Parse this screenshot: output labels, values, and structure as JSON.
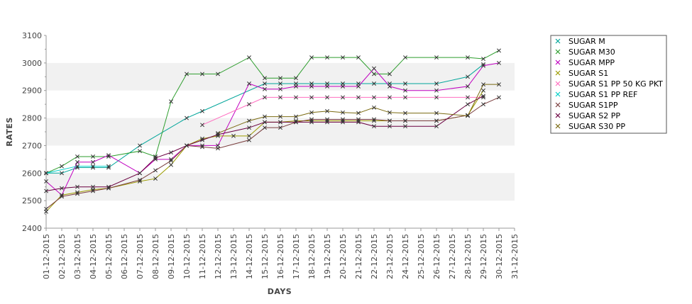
{
  "chart_data": {
    "type": "line",
    "xlabel": "DAYS",
    "ylabel": "RATES",
    "ylim": [
      2400,
      3100
    ],
    "yticks": [
      2400,
      2500,
      2600,
      2700,
      2800,
      2900,
      3000,
      3100
    ],
    "grid": "alternating horizontal bands",
    "legend": "right",
    "x": [
      "01-12-2015",
      "02-12-2015",
      "03-12-2015",
      "04-12-2015",
      "05-12-2015",
      "06-12-2015",
      "07-12-2015",
      "08-12-2015",
      "09-12-2015",
      "10-12-2015",
      "11-12-2015",
      "12-12-2015",
      "13-12-2015",
      "14-12-2015",
      "15-12-2015",
      "16-12-2015",
      "17-12-2015",
      "18-12-2015",
      "19-12-2015",
      "20-12-2015",
      "21-12-2015",
      "22-12-2015",
      "23-12-2015",
      "24-12-2015",
      "25-12-2015",
      "26-12-2015",
      "27-12-2015",
      "28-12-2015",
      "29-12-2015",
      "30-12-2015",
      "31-12-2015"
    ],
    "series": [
      {
        "name": "SUGAR M",
        "color": "#00a59a",
        "values": [
          2600,
          2600,
          2620,
          2620,
          2620,
          null,
          2700,
          null,
          null,
          2800,
          2825,
          null,
          null,
          null,
          2925,
          2925,
          2925,
          2925,
          2925,
          2925,
          2925,
          2925,
          2925,
          2925,
          null,
          2925,
          null,
          2950,
          2995,
          null,
          null
        ]
      },
      {
        "name": "SUGAR M30",
        "color": "#2e9e2e",
        "values": [
          2600,
          2625,
          2660,
          2660,
          2660,
          null,
          2680,
          2660,
          2860,
          2960,
          2960,
          2960,
          null,
          3020,
          2945,
          2945,
          2945,
          3020,
          3020,
          3020,
          3020,
          2960,
          2960,
          3020,
          null,
          3020,
          null,
          3020,
          3015,
          3045,
          null
        ]
      },
      {
        "name": "SUGAR MPP",
        "color": "#c000c0",
        "values": [
          2570,
          2520,
          2640,
          2640,
          2665,
          null,
          2600,
          2650,
          2650,
          2700,
          2700,
          2700,
          null,
          2925,
          2905,
          2905,
          2915,
          2915,
          2915,
          2915,
          2915,
          2980,
          2915,
          2900,
          null,
          2900,
          null,
          2915,
          2990,
          3000,
          null
        ]
      },
      {
        "name": "SUGAR S1",
        "color": "#9c9c00",
        "values": [
          2460,
          2520,
          2530,
          2540,
          2545,
          null,
          2570,
          2580,
          2630,
          2700,
          2725,
          2735,
          2735,
          2735,
          2785,
          2785,
          2790,
          2790,
          2790,
          2790,
          2790,
          2790,
          2790,
          2790,
          null,
          2790,
          null,
          2810,
          2900,
          null,
          null
        ]
      },
      {
        "name": "SUGAR S1 PP 50 KG PKT",
        "color": "#ff6fc0",
        "values": [
          null,
          null,
          null,
          null,
          null,
          null,
          null,
          null,
          null,
          null,
          2775,
          null,
          null,
          2850,
          2875,
          2875,
          2875,
          2875,
          2875,
          2875,
          2875,
          2875,
          2875,
          2875,
          null,
          2875,
          null,
          2875,
          2875,
          null,
          null
        ]
      },
      {
        "name": "SUGAR S1 PP REF",
        "color": "#00d0c8",
        "values": [
          2600,
          null,
          2625,
          2625,
          2625,
          null,
          null,
          null,
          null,
          null,
          null,
          null,
          null,
          null,
          null,
          null,
          null,
          null,
          null,
          null,
          null,
          null,
          null,
          null,
          null,
          null,
          null,
          null,
          null,
          null,
          null
        ]
      },
      {
        "name": "SUGAR S1PP",
        "color": "#7a3e3e",
        "values": [
          2470,
          2515,
          2525,
          2535,
          2545,
          null,
          2575,
          2610,
          2645,
          2700,
          2695,
          2690,
          null,
          2720,
          2765,
          2765,
          2785,
          2795,
          2795,
          2795,
          2795,
          2795,
          2790,
          2790,
          null,
          2790,
          null,
          2810,
          2850,
          2875,
          null
        ]
      },
      {
        "name": "SUGAR S2 PP",
        "color": "#6a0040",
        "values": [
          2535,
          2545,
          2550,
          2550,
          2550,
          null,
          2600,
          2655,
          2675,
          2700,
          2720,
          2740,
          null,
          2765,
          2785,
          2785,
          2785,
          2785,
          2785,
          2785,
          2785,
          2770,
          2770,
          2770,
          null,
          2770,
          null,
          2850,
          2880,
          null,
          null
        ]
      },
      {
        "name": "SUGAR S30 PP",
        "color": "#7a6a10",
        "values": [
          null,
          null,
          null,
          null,
          null,
          null,
          null,
          null,
          null,
          null,
          null,
          2745,
          null,
          2790,
          2805,
          2805,
          2805,
          2820,
          2825,
          2820,
          2818,
          2838,
          2820,
          2818,
          null,
          2818,
          null,
          2808,
          2922,
          2922,
          null
        ]
      }
    ]
  }
}
